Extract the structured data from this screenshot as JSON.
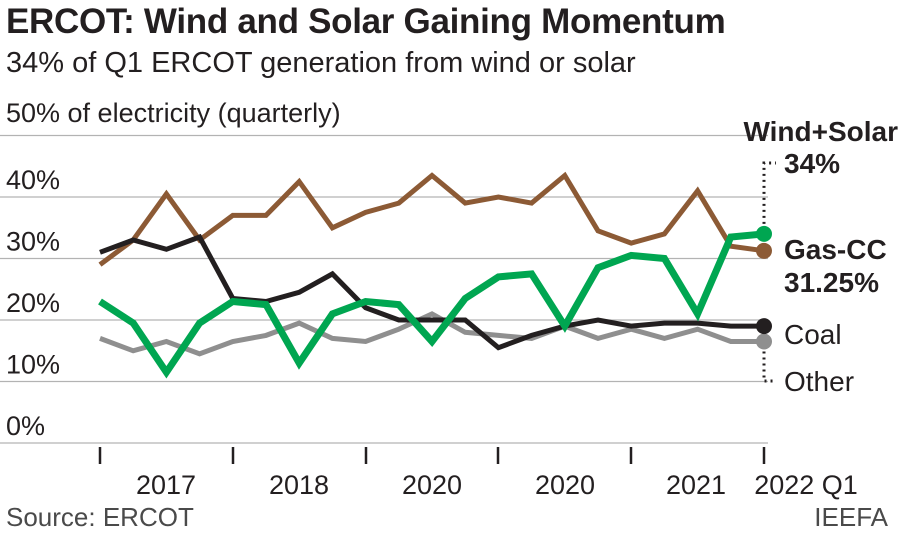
{
  "title": "ERCOT: Wind and Solar Gaining Momentum",
  "subtitle": "34% of Q1 ERCOT generation from wind or solar",
  "source": "Source: ERCOT",
  "credit": "IEEFA",
  "colors": {
    "wind_solar": "#00a651",
    "gas_cc": "#8c5a35",
    "coal": "#231f20",
    "other": "#8f8f8f",
    "grid": "#b3b3b3"
  },
  "chart_data": {
    "type": "line",
    "title": "ERCOT: Wind and Solar Gaining Momentum",
    "ylabel": "50% of electricity (quarterly)",
    "ylim": [
      0,
      50
    ],
    "yticks": [
      "0%",
      "10%",
      "20%",
      "30%",
      "40%"
    ],
    "xtick_labels": [
      "2017",
      "2018",
      "2020",
      "2020",
      "2021",
      "2022 Q1"
    ],
    "periods": 21,
    "series": [
      {
        "name": "Gas-CC",
        "end_label": [
          "Gas-CC",
          "31.25%"
        ],
        "values": [
          29,
          33,
          40.5,
          33,
          37,
          37,
          42.5,
          35,
          37.5,
          39,
          43.5,
          39,
          40,
          39,
          43.5,
          34.5,
          32.5,
          34,
          41,
          32,
          31.25
        ]
      },
      {
        "name": "Coal",
        "end_label": [
          "Coal"
        ],
        "values": [
          31,
          33,
          31.5,
          33.5,
          23.5,
          23,
          24.5,
          27.5,
          22,
          20,
          20,
          20,
          15.5,
          17.5,
          19,
          20,
          19,
          19.5,
          19.5,
          19,
          19
        ]
      },
      {
        "name": "Other",
        "end_label": [
          "Other"
        ],
        "values": [
          17,
          15,
          16.5,
          14.5,
          16.5,
          17.5,
          19.5,
          17,
          16.5,
          18.5,
          21,
          18,
          17.5,
          17,
          19,
          17,
          18.5,
          17,
          18.5,
          16.5,
          16.5
        ]
      },
      {
        "name": "Wind+Solar",
        "end_label": [
          "Wind+Solar",
          "34%"
        ],
        "values": [
          23,
          19.5,
          11.5,
          19.5,
          23,
          22.5,
          13,
          21,
          23,
          22.5,
          16.5,
          23.5,
          27,
          27.5,
          19,
          28.5,
          30.5,
          30,
          21,
          33.5,
          34
        ]
      }
    ]
  }
}
